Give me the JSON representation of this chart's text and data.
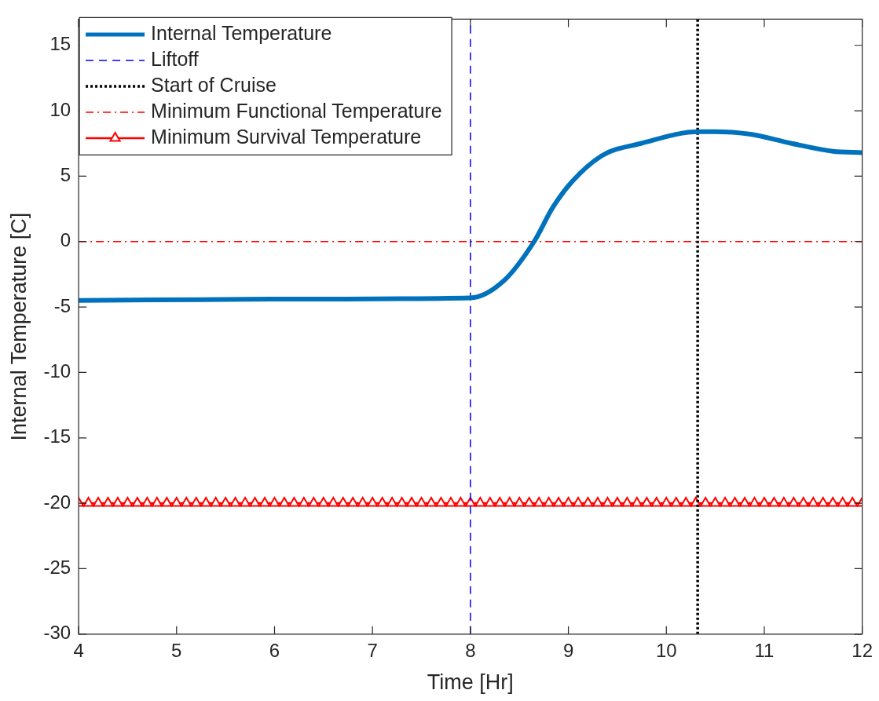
{
  "chart_data": {
    "type": "line",
    "xlabel": "Time [Hr]",
    "ylabel": "Internal Temperature [C]",
    "xlim": [
      4,
      12
    ],
    "ylim": [
      -30,
      17
    ],
    "xticks": [
      4,
      5,
      6,
      7,
      8,
      9,
      10,
      11,
      12
    ],
    "yticks": [
      -30,
      -25,
      -20,
      -15,
      -10,
      -5,
      0,
      5,
      10,
      15
    ],
    "grid": false,
    "legend": "top left",
    "marker": "none",
    "series": [
      {
        "name": "Internal Temperature",
        "color": "#0072bd",
        "line_style": "solid",
        "x": [
          4,
          6,
          8,
          8.34,
          8.65,
          8.84,
          9.04,
          9.35,
          9.74,
          10.33,
          10.49,
          10.86,
          11.28,
          11.7,
          12
        ],
        "values": [
          -4.5,
          -4.4,
          -4.3,
          -3.0,
          0,
          2.6,
          4.6,
          6.6,
          7.5,
          8.4,
          8.4,
          8.2,
          7.5,
          6.9,
          6.8
        ]
      },
      {
        "name": "Liftoff",
        "color": "#0000ff",
        "line_style": "dashed",
        "x": [
          8,
          8
        ],
        "values": [
          -30,
          17
        ]
      },
      {
        "name": "Start of Cruise",
        "color": "#000000",
        "line_style": "dotted",
        "x": [
          10.32,
          10.32
        ],
        "values": [
          -30,
          17
        ]
      },
      {
        "name": "Minimum Functional Temperature",
        "color": "#ff0000",
        "line_style": "dashdot",
        "x": [
          4,
          12
        ],
        "values": [
          0,
          0
        ]
      },
      {
        "name": "Minimum Survival Temperature",
        "color": "#ff0000",
        "line_style": "solid",
        "marker": "triangle",
        "x": [
          4,
          4.1,
          4.2,
          4.3,
          4.4,
          4.5,
          4.6,
          4.7,
          4.8,
          4.9,
          5,
          5.1,
          5.2,
          5.3,
          5.4,
          5.5,
          5.6,
          5.7,
          5.8,
          5.9,
          6,
          6.1,
          6.2,
          6.3,
          6.4,
          6.5,
          6.6,
          6.7,
          6.8,
          6.9,
          7,
          7.1,
          7.2,
          7.3,
          7.4,
          7.5,
          7.6,
          7.7,
          7.8,
          7.9,
          8,
          8.1,
          8.2,
          8.3,
          8.4,
          8.5,
          8.6,
          8.7,
          8.8,
          8.9,
          9,
          9.1,
          9.2,
          9.3,
          9.4,
          9.5,
          9.6,
          9.7,
          9.8,
          9.9,
          10,
          10.1,
          10.2,
          10.3,
          10.4,
          10.5,
          10.6,
          10.7,
          10.8,
          10.9,
          11,
          11.1,
          11.2,
          11.3,
          11.4,
          11.5,
          11.6,
          11.7,
          11.8,
          11.9,
          12
        ],
        "values": [
          -20,
          -20,
          -20,
          -20,
          -20,
          -20,
          -20,
          -20,
          -20,
          -20,
          -20,
          -20,
          -20,
          -20,
          -20,
          -20,
          -20,
          -20,
          -20,
          -20,
          -20,
          -20,
          -20,
          -20,
          -20,
          -20,
          -20,
          -20,
          -20,
          -20,
          -20,
          -20,
          -20,
          -20,
          -20,
          -20,
          -20,
          -20,
          -20,
          -20,
          -20,
          -20,
          -20,
          -20,
          -20,
          -20,
          -20,
          -20,
          -20,
          -20,
          -20,
          -20,
          -20,
          -20,
          -20,
          -20,
          -20,
          -20,
          -20,
          -20,
          -20,
          -20,
          -20,
          -20,
          -20,
          -20,
          -20,
          -20,
          -20,
          -20,
          -20,
          -20,
          -20,
          -20,
          -20,
          -20,
          -20,
          -20,
          -20,
          -20,
          -20
        ]
      }
    ]
  }
}
